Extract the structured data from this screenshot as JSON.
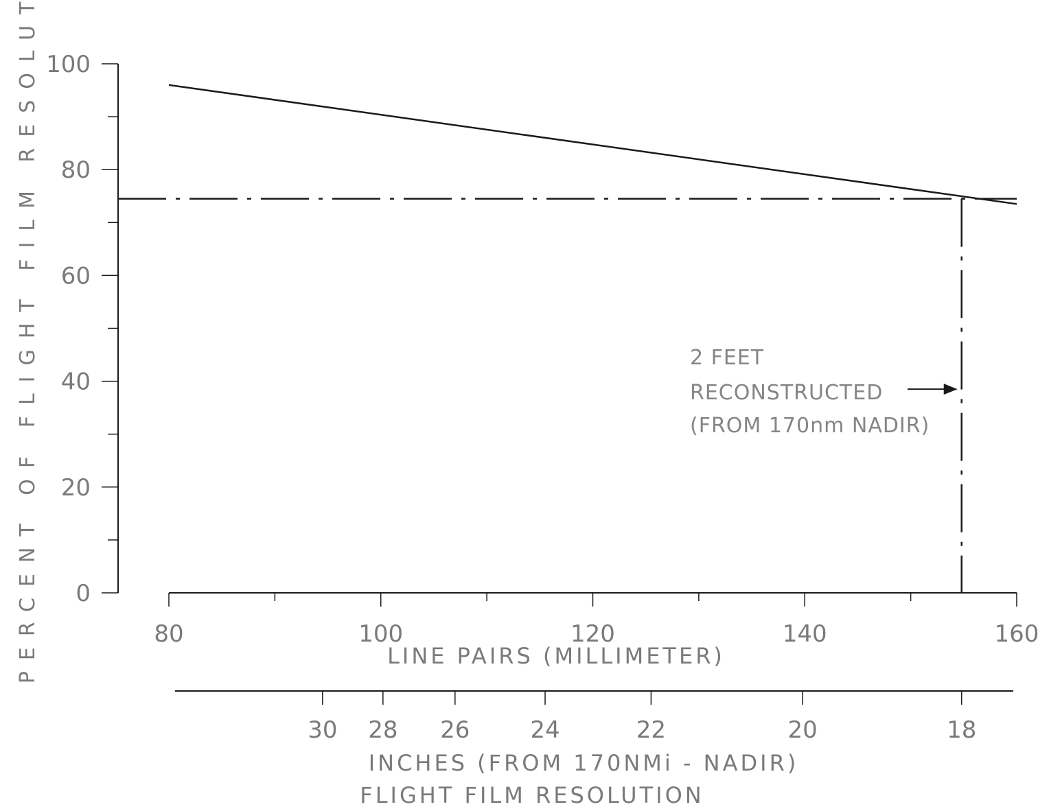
{
  "chart_data": {
    "type": "line",
    "title": "",
    "ylabel": "PERCENT OF FLIGHT FILM RESOLUTION",
    "xlabel": "LINE PAIRS (MILLIMETER)",
    "x2label": "INCHES (FROM 170NMi - NADIR)",
    "footer": "FLIGHT FILM RESOLUTION",
    "xlim": [
      80,
      160
    ],
    "ylim": [
      0,
      100
    ],
    "y_ticks": [
      0,
      20,
      40,
      60,
      80,
      100
    ],
    "y_tick_labels": [
      "0",
      "20",
      "40",
      "60",
      "80",
      "100"
    ],
    "y_minor_ticks": [
      10,
      30,
      50,
      70,
      90
    ],
    "x_ticks": [
      80,
      100,
      120,
      140,
      160
    ],
    "x_tick_labels": [
      "80",
      "100",
      "120",
      "140",
      "160"
    ],
    "x_minor_ticks": [
      90,
      110,
      130,
      150
    ],
    "x2_ticks": [
      {
        "label": "30",
        "lp": 94.5
      },
      {
        "label": "28",
        "lp": 100.2
      },
      {
        "label": "26",
        "lp": 107
      },
      {
        "label": "24",
        "lp": 115.5
      },
      {
        "label": "22",
        "lp": 125.5
      },
      {
        "label": "20",
        "lp": 139.8
      },
      {
        "label": "18",
        "lp": 154.8
      }
    ],
    "series": [
      {
        "style": "solid",
        "x": [
          80,
          160
        ],
        "y": [
          96,
          73.5
        ]
      }
    ],
    "reference_lines": [
      {
        "orientation": "horizontal",
        "value": 74.5,
        "style": "dash-dot"
      },
      {
        "orientation": "vertical",
        "value": 154.8,
        "style": "dash-dot"
      }
    ],
    "annotation": {
      "lines": [
        "2 FEET",
        "RECONSTRUCTED",
        "(FROM 170nm NADIR)"
      ],
      "arrow_to_x": 154.8,
      "arrow_at_y": 38.5
    }
  }
}
